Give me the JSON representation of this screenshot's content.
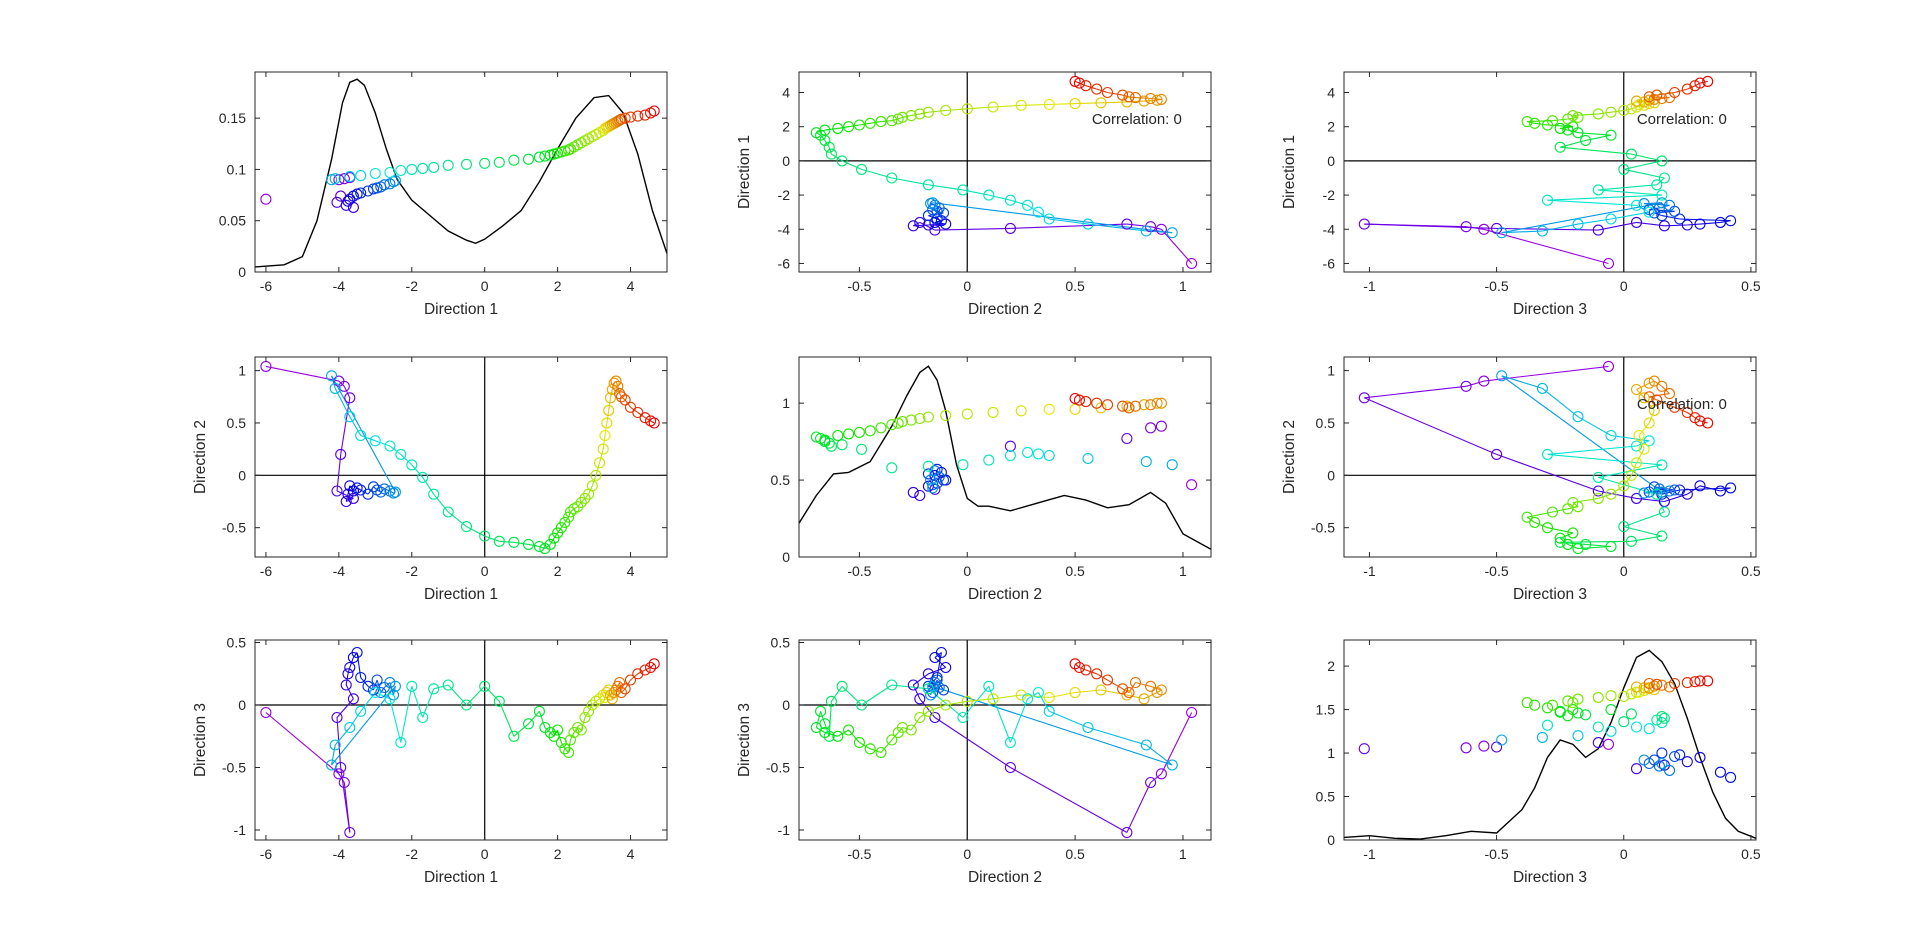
{
  "figure": {
    "rows": 3,
    "cols": 3
  },
  "colors": {
    "axes": "#262626",
    "zero_line": "#000000",
    "density": "#000000",
    "background": "#ffffff"
  },
  "chart_data": [
    {
      "type": "scatter",
      "title": "",
      "xlabel": "Direction 1",
      "ylabel": "",
      "xlim": [
        -6.3,
        5.0
      ],
      "ylim": [
        0,
        0.195
      ],
      "xticks": [
        -6,
        -4,
        -2,
        0,
        2,
        4
      ],
      "xticklabels": [
        "-6",
        "-4",
        "-2",
        "0",
        "2",
        "4"
      ],
      "yticks": [
        0,
        0.05,
        0.1,
        0.15
      ],
      "yticklabels": [
        "0",
        "0.05",
        "0.1",
        "0.15"
      ],
      "connect": false,
      "zero_lines": false,
      "annotation": "",
      "x_source": "d1",
      "y_source": "h1",
      "density_curve": {
        "x": [
          -6.3,
          -5.5,
          -5.0,
          -4.6,
          -4.2,
          -3.9,
          -3.7,
          -3.5,
          -3.3,
          -3.0,
          -2.7,
          -2.4,
          -2.0,
          -1.5,
          -1.0,
          -0.5,
          -0.25,
          0.0,
          0.5,
          1.0,
          1.5,
          2.0,
          2.5,
          3.0,
          3.4,
          3.8,
          4.2,
          4.6,
          5.0
        ],
        "y": [
          0.005,
          0.007,
          0.015,
          0.05,
          0.11,
          0.165,
          0.185,
          0.188,
          0.182,
          0.155,
          0.12,
          0.09,
          0.07,
          0.055,
          0.04,
          0.031,
          0.028,
          0.032,
          0.045,
          0.06,
          0.088,
          0.12,
          0.15,
          0.17,
          0.172,
          0.155,
          0.115,
          0.06,
          0.018
        ]
      }
    },
    {
      "type": "scatter",
      "title": "",
      "xlabel": "Direction 2",
      "ylabel": "Direction 1",
      "xlim": [
        -0.78,
        1.13
      ],
      "ylim": [
        -6.5,
        5.2
      ],
      "xticks": [
        -0.5,
        0,
        0.5,
        1
      ],
      "xticklabels": [
        "-0.5",
        "0",
        "0.5",
        "1"
      ],
      "yticks": [
        -6,
        -4,
        -2,
        0,
        2,
        4
      ],
      "yticklabels": [
        "-6",
        "-4",
        "-2",
        "0",
        "2",
        "4"
      ],
      "connect": true,
      "zero_lines": true,
      "annotation": "Correlation: 0",
      "x_source": "d2",
      "y_source": "d1"
    },
    {
      "type": "scatter",
      "title": "",
      "xlabel": "Direction 3",
      "ylabel": "Direction 1",
      "xlim": [
        -1.1,
        0.52
      ],
      "ylim": [
        -6.5,
        5.2
      ],
      "xticks": [
        -1,
        -0.5,
        0,
        0.5
      ],
      "xticklabels": [
        "-1",
        "-0.5",
        "0",
        "0.5"
      ],
      "yticks": [
        -6,
        -4,
        -2,
        0,
        2,
        4
      ],
      "yticklabels": [
        "-6",
        "-4",
        "-2",
        "0",
        "2",
        "4"
      ],
      "connect": true,
      "zero_lines": true,
      "annotation": "Correlation: 0",
      "x_source": "d3",
      "y_source": "d1"
    },
    {
      "type": "scatter",
      "title": "",
      "xlabel": "Direction 1",
      "ylabel": "Direction 2",
      "xlim": [
        -6.3,
        5.0
      ],
      "ylim": [
        -0.78,
        1.13
      ],
      "xticks": [
        -6,
        -4,
        -2,
        0,
        2,
        4
      ],
      "xticklabels": [
        "-6",
        "-4",
        "-2",
        "0",
        "2",
        "4"
      ],
      "yticks": [
        -0.5,
        0,
        0.5,
        1
      ],
      "yticklabels": [
        "-0.5",
        "0",
        "0.5",
        "1"
      ],
      "connect": true,
      "zero_lines": true,
      "annotation": "",
      "x_source": "d1",
      "y_source": "d2"
    },
    {
      "type": "scatter",
      "title": "",
      "xlabel": "Direction 2",
      "ylabel": "",
      "xlim": [
        -0.78,
        1.13
      ],
      "ylim": [
        0,
        1.3
      ],
      "xticks": [
        -0.5,
        0,
        0.5,
        1
      ],
      "xticklabels": [
        "-0.5",
        "0",
        "0.5",
        "1"
      ],
      "yticks": [
        0,
        0.5,
        1
      ],
      "yticklabels": [
        "0",
        "0.5",
        "1"
      ],
      "connect": false,
      "zero_lines": false,
      "annotation": "",
      "x_source": "d2",
      "y_source": "h2",
      "density_curve": {
        "x": [
          -0.78,
          -0.7,
          -0.62,
          -0.55,
          -0.45,
          -0.35,
          -0.28,
          -0.22,
          -0.18,
          -0.14,
          -0.1,
          -0.05,
          0.0,
          0.05,
          0.1,
          0.2,
          0.35,
          0.45,
          0.55,
          0.65,
          0.75,
          0.85,
          0.92,
          1.0,
          1.13
        ],
        "y": [
          0.22,
          0.4,
          0.54,
          0.55,
          0.62,
          0.85,
          1.05,
          1.2,
          1.24,
          1.15,
          0.95,
          0.6,
          0.38,
          0.33,
          0.33,
          0.3,
          0.36,
          0.4,
          0.37,
          0.32,
          0.34,
          0.42,
          0.35,
          0.15,
          0.05
        ]
      }
    },
    {
      "type": "scatter",
      "title": "",
      "xlabel": "Direction 3",
      "ylabel": "Direction 2",
      "xlim": [
        -1.1,
        0.52
      ],
      "ylim": [
        -0.78,
        1.13
      ],
      "xticks": [
        -1,
        -0.5,
        0,
        0.5
      ],
      "xticklabels": [
        "-1",
        "-0.5",
        "0",
        "0.5"
      ],
      "yticks": [
        -0.5,
        0,
        0.5,
        1
      ],
      "yticklabels": [
        "-0.5",
        "0",
        "0.5",
        "1"
      ],
      "connect": true,
      "zero_lines": true,
      "annotation": "Correlation: 0",
      "x_source": "d3",
      "y_source": "d2"
    },
    {
      "type": "scatter",
      "title": "",
      "xlabel": "Direction 1",
      "ylabel": "Direction 3",
      "xlim": [
        -6.3,
        5.0
      ],
      "ylim": [
        -1.08,
        0.52
      ],
      "xticks": [
        -6,
        -4,
        -2,
        0,
        2,
        4
      ],
      "xticklabels": [
        "-6",
        "-4",
        "-2",
        "0",
        "2",
        "4"
      ],
      "yticks": [
        -1,
        -0.5,
        0,
        0.5
      ],
      "yticklabels": [
        "-1",
        "-0.5",
        "0",
        "0.5"
      ],
      "connect": true,
      "zero_lines": true,
      "annotation": "",
      "x_source": "d1",
      "y_source": "d3"
    },
    {
      "type": "scatter",
      "title": "",
      "xlabel": "Direction 2",
      "ylabel": "Direction 3",
      "xlim": [
        -0.78,
        1.13
      ],
      "ylim": [
        -1.08,
        0.52
      ],
      "xticks": [
        -0.5,
        0,
        0.5,
        1
      ],
      "xticklabels": [
        "-0.5",
        "0",
        "0.5",
        "1"
      ],
      "yticks": [
        -1,
        -0.5,
        0,
        0.5
      ],
      "yticklabels": [
        "-1",
        "-0.5",
        "0",
        "0.5"
      ],
      "connect": true,
      "zero_lines": true,
      "annotation": "",
      "x_source": "d2",
      "y_source": "d3"
    },
    {
      "type": "scatter",
      "title": "",
      "xlabel": "Direction 3",
      "ylabel": "",
      "xlim": [
        -1.1,
        0.52
      ],
      "ylim": [
        0,
        2.3
      ],
      "xticks": [
        -1,
        -0.5,
        0,
        0.5
      ],
      "xticklabels": [
        "-1",
        "-0.5",
        "0",
        "0.5"
      ],
      "yticks": [
        0,
        0.5,
        1,
        1.5,
        2
      ],
      "yticklabels": [
        "0",
        "0.5",
        "1",
        "1.5",
        "2"
      ],
      "connect": false,
      "zero_lines": false,
      "annotation": "",
      "x_source": "d3",
      "y_source": "h3",
      "density_curve": {
        "x": [
          -1.1,
          -1.0,
          -0.9,
          -0.8,
          -0.7,
          -0.6,
          -0.5,
          -0.4,
          -0.35,
          -0.3,
          -0.25,
          -0.2,
          -0.15,
          -0.1,
          -0.05,
          0.0,
          0.05,
          0.1,
          0.15,
          0.2,
          0.25,
          0.3,
          0.35,
          0.4,
          0.45,
          0.52
        ],
        "y": [
          0.03,
          0.05,
          0.02,
          0.01,
          0.05,
          0.1,
          0.08,
          0.35,
          0.6,
          0.95,
          1.15,
          1.1,
          0.95,
          1.05,
          1.35,
          1.75,
          2.1,
          2.18,
          2.05,
          1.8,
          1.4,
          0.95,
          0.55,
          0.25,
          0.1,
          0.02
        ]
      }
    }
  ],
  "trajectory": {
    "d1": [
      -6.0,
      -4.0,
      -3.85,
      -3.7,
      -3.95,
      -4.05,
      -3.6,
      -3.8,
      -3.75,
      -3.7,
      -3.6,
      -3.5,
      -3.4,
      -3.2,
      -3.05,
      -2.95,
      -2.85,
      -2.75,
      -2.6,
      -2.5,
      -2.45,
      -4.2,
      -4.1,
      -3.7,
      -3.4,
      -3.0,
      -2.6,
      -2.3,
      -2.0,
      -1.7,
      -1.4,
      -1.0,
      -0.5,
      0.0,
      0.4,
      0.8,
      1.2,
      1.5,
      1.65,
      1.8,
      1.9,
      2.0,
      2.1,
      2.2,
      2.3,
      2.35,
      2.45,
      2.55,
      2.65,
      2.75,
      2.85,
      2.95,
      3.05,
      3.15,
      3.25,
      3.3,
      3.35,
      3.4,
      3.45,
      3.5,
      3.55,
      3.6,
      3.65,
      3.7,
      3.75,
      3.85,
      4.0,
      4.2,
      4.4,
      4.55,
      4.65
    ],
    "d2": [
      1.04,
      0.9,
      0.85,
      0.74,
      0.2,
      -0.15,
      -0.22,
      -0.25,
      -0.18,
      -0.1,
      -0.15,
      -0.12,
      -0.14,
      -0.18,
      -0.11,
      -0.14,
      -0.16,
      -0.13,
      -0.15,
      -0.17,
      -0.16,
      0.95,
      0.83,
      0.56,
      0.38,
      0.33,
      0.28,
      0.2,
      0.1,
      -0.02,
      -0.18,
      -0.35,
      -0.49,
      -0.58,
      -0.63,
      -0.64,
      -0.66,
      -0.68,
      -0.7,
      -0.66,
      -0.6,
      -0.55,
      -0.5,
      -0.45,
      -0.4,
      -0.35,
      -0.32,
      -0.3,
      -0.26,
      -0.22,
      -0.18,
      -0.1,
      0.0,
      0.12,
      0.25,
      0.38,
      0.5,
      0.62,
      0.74,
      0.82,
      0.88,
      0.9,
      0.85,
      0.78,
      0.75,
      0.72,
      0.65,
      0.6,
      0.55,
      0.52,
      0.5
    ],
    "d3": [
      -0.06,
      -0.55,
      -0.62,
      -1.02,
      -0.5,
      -0.1,
      0.05,
      0.16,
      0.25,
      0.3,
      0.38,
      0.42,
      0.22,
      0.15,
      0.12,
      0.2,
      0.1,
      0.14,
      0.18,
      0.08,
      0.15,
      -0.48,
      -0.32,
      -0.18,
      -0.05,
      0.1,
      0.05,
      -0.3,
      0.15,
      -0.1,
      0.13,
      0.16,
      0.0,
      0.15,
      0.03,
      -0.25,
      -0.15,
      -0.05,
      -0.18,
      -0.22,
      -0.25,
      -0.2,
      -0.3,
      -0.35,
      -0.38,
      -0.28,
      -0.22,
      -0.18,
      -0.2,
      -0.1,
      -0.05,
      0.0,
      0.03,
      0.05,
      0.08,
      0.06,
      0.1,
      0.12,
      0.08,
      0.05,
      0.1,
      0.12,
      0.15,
      0.18,
      0.1,
      0.13,
      0.2,
      0.25,
      0.28,
      0.3,
      0.33
    ],
    "h1": [
      0.071,
      0.09,
      0.091,
      0.092,
      0.074,
      0.068,
      0.063,
      0.065,
      0.069,
      0.071,
      0.074,
      0.076,
      0.077,
      0.079,
      0.081,
      0.082,
      0.083,
      0.085,
      0.086,
      0.088,
      0.089,
      0.09,
      0.091,
      0.093,
      0.094,
      0.096,
      0.097,
      0.099,
      0.1,
      0.101,
      0.102,
      0.104,
      0.105,
      0.106,
      0.107,
      0.109,
      0.11,
      0.112,
      0.113,
      0.114,
      0.115,
      0.116,
      0.117,
      0.118,
      0.119,
      0.12,
      0.122,
      0.124,
      0.126,
      0.128,
      0.13,
      0.132,
      0.134,
      0.136,
      0.138,
      0.14,
      0.141,
      0.142,
      0.143,
      0.144,
      0.145,
      0.146,
      0.147,
      0.148,
      0.149,
      0.15,
      0.151,
      0.152,
      0.153,
      0.155,
      0.157
    ],
    "h2": [
      0.47,
      0.85,
      0.84,
      0.77,
      0.72,
      0.44,
      0.4,
      0.42,
      0.46,
      0.5,
      0.53,
      0.55,
      0.57,
      0.54,
      0.5,
      0.48,
      0.47,
      0.52,
      0.56,
      0.5,
      0.45,
      0.6,
      0.62,
      0.64,
      0.66,
      0.67,
      0.68,
      0.66,
      0.63,
      0.6,
      0.59,
      0.58,
      0.7,
      0.73,
      0.72,
      0.74,
      0.75,
      0.77,
      0.78,
      0.76,
      0.79,
      0.8,
      0.81,
      0.82,
      0.84,
      0.86,
      0.87,
      0.88,
      0.89,
      0.9,
      0.91,
      0.92,
      0.93,
      0.94,
      0.95,
      0.96,
      0.96,
      0.97,
      0.98,
      0.99,
      1.0,
      1.0,
      0.99,
      0.98,
      0.97,
      0.98,
      0.99,
      1.0,
      1.01,
      1.02,
      1.03
    ],
    "h3": [
      1.1,
      1.08,
      1.06,
      1.05,
      1.07,
      1.12,
      0.82,
      0.86,
      0.9,
      0.95,
      0.78,
      0.72,
      0.98,
      1.0,
      0.92,
      0.96,
      0.88,
      0.85,
      0.8,
      0.92,
      0.88,
      1.15,
      1.18,
      1.2,
      1.25,
      1.28,
      1.3,
      1.32,
      1.35,
      1.3,
      1.38,
      1.4,
      1.36,
      1.42,
      1.45,
      1.48,
      1.44,
      1.5,
      1.46,
      1.43,
      1.47,
      1.5,
      1.52,
      1.55,
      1.58,
      1.55,
      1.6,
      1.62,
      1.58,
      1.64,
      1.66,
      1.65,
      1.68,
      1.7,
      1.72,
      1.7,
      1.74,
      1.73,
      1.75,
      1.76,
      1.75,
      1.77,
      1.78,
      1.76,
      1.8,
      1.79,
      1.8,
      1.81,
      1.82,
      1.83,
      1.83
    ]
  }
}
